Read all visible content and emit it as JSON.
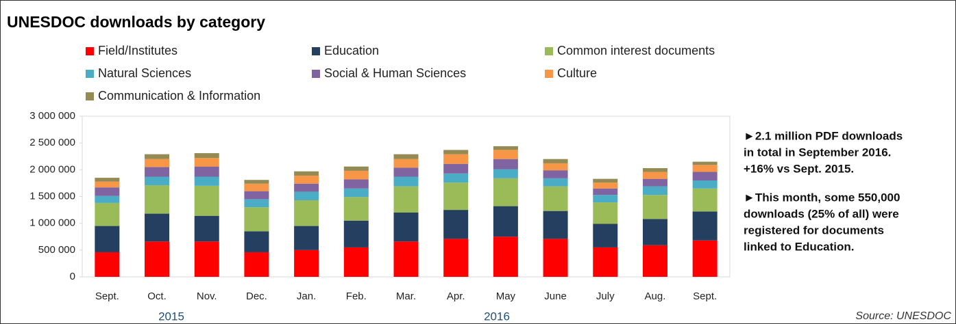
{
  "chart_data": {
    "type": "stacked_bar",
    "title": "UNESDOC downloads by category",
    "categories": [
      "Sept.",
      "Oct.",
      "Nov.",
      "Dec.",
      "Jan.",
      "Feb.",
      "Mar.",
      "Apr.",
      "May",
      "June",
      "July",
      "Aug.",
      "Sept."
    ],
    "year_labels": [
      "2015",
      "2016"
    ],
    "series": [
      {
        "name": "Field/Institutes",
        "color": "#ff0000",
        "values": [
          460000,
          660000,
          660000,
          460000,
          500000,
          550000,
          660000,
          710000,
          750000,
          710000,
          550000,
          590000,
          680000
        ]
      },
      {
        "name": "Education",
        "color": "#243f60",
        "values": [
          490000,
          520000,
          480000,
          390000,
          450000,
          500000,
          540000,
          540000,
          570000,
          520000,
          440000,
          490000,
          540000
        ]
      },
      {
        "name": "Common interest documents",
        "color": "#9bbb59",
        "values": [
          430000,
          530000,
          560000,
          450000,
          480000,
          440000,
          490000,
          510000,
          520000,
          460000,
          400000,
          450000,
          430000
        ]
      },
      {
        "name": "Natural Sciences",
        "color": "#4bacc6",
        "values": [
          130000,
          160000,
          170000,
          150000,
          160000,
          160000,
          180000,
          170000,
          170000,
          150000,
          140000,
          160000,
          150000
        ]
      },
      {
        "name": "Social & Human Sciences",
        "color": "#8064a2",
        "values": [
          160000,
          180000,
          190000,
          150000,
          150000,
          170000,
          170000,
          180000,
          190000,
          150000,
          120000,
          140000,
          160000
        ]
      },
      {
        "name": "Culture",
        "color": "#f79646",
        "values": [
          110000,
          150000,
          160000,
          140000,
          150000,
          160000,
          160000,
          180000,
          170000,
          130000,
          110000,
          130000,
          130000
        ]
      },
      {
        "name": "Communication & Information",
        "color": "#948a54",
        "values": [
          70000,
          90000,
          90000,
          70000,
          80000,
          80000,
          90000,
          80000,
          70000,
          80000,
          70000,
          70000,
          60000
        ]
      }
    ],
    "ylim": [
      0,
      3000000
    ],
    "yticks": [
      0,
      {
        "value": 500000,
        "label": "500 000"
      },
      {
        "value": 1000000,
        "label": "1 000 000"
      },
      {
        "value": 1500000,
        "label": "1 500 000"
      },
      {
        "value": 2000000,
        "label": "2 000 000"
      },
      {
        "value": 2500000,
        "label": "2 500 000"
      },
      {
        "value": 3000000,
        "label": "3 000 000"
      }
    ],
    "grid": false,
    "legend": "top",
    "annotations": [
      [
        "►2.1 million PDF downloads",
        "in total in September 2016.",
        "+16% vs Sept. 2015."
      ],
      [
        "►This month, some 550,000",
        "downloads (25% of all) were",
        "registered for documents",
        "linked to Education."
      ]
    ],
    "source": "Source: UNESDOC"
  }
}
